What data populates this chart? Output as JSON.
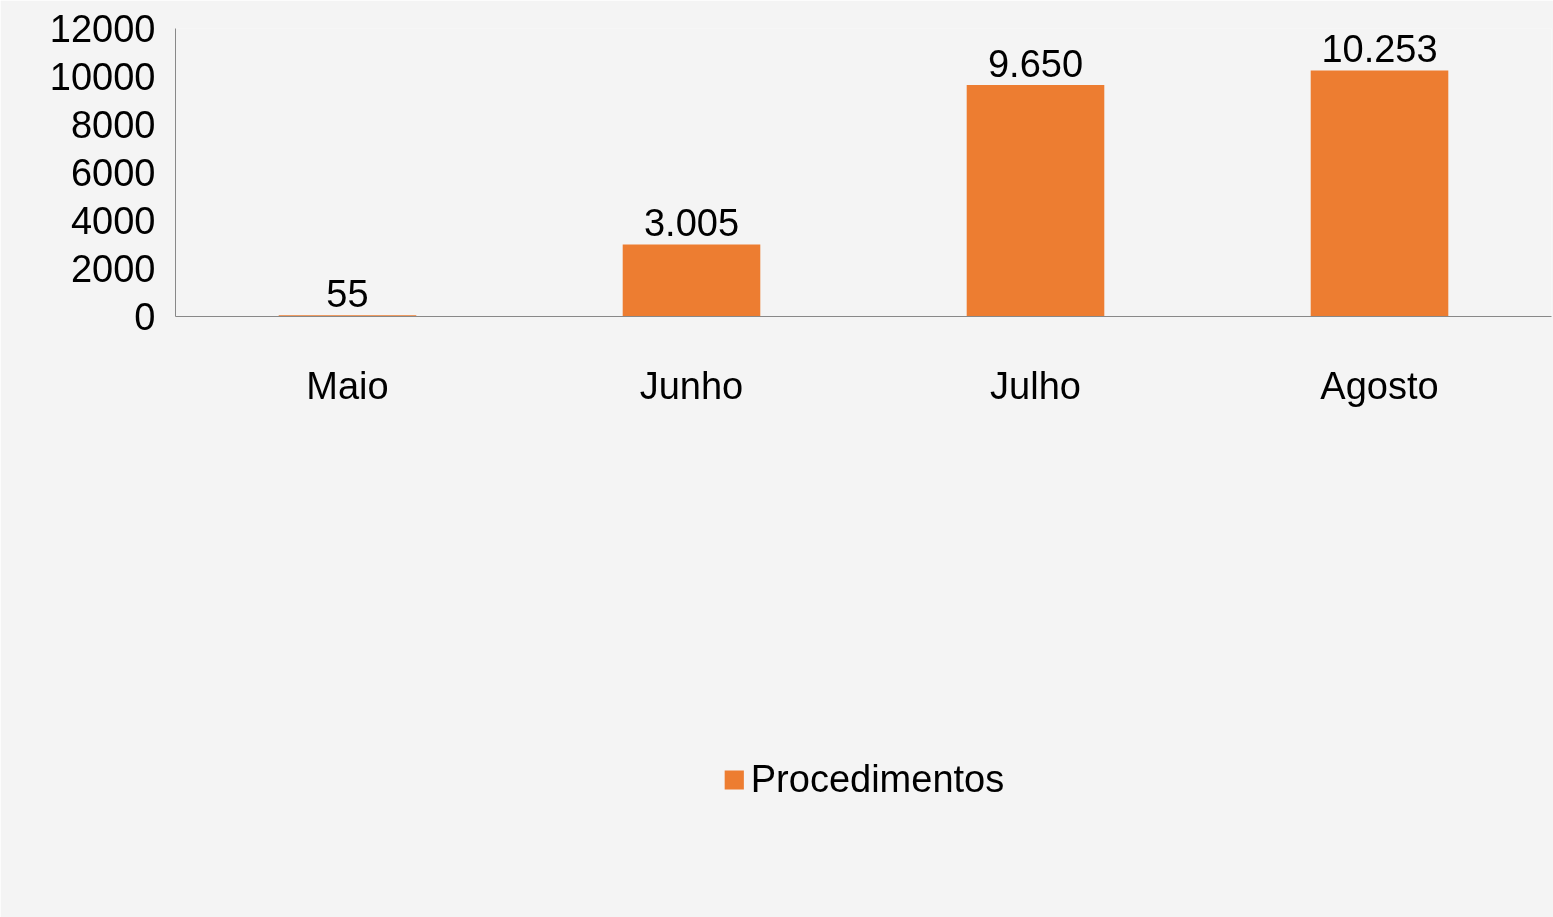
{
  "chart_data": {
    "type": "bar",
    "categories": [
      "Maio",
      "Junho",
      "Julho",
      "Agosto"
    ],
    "series": [
      {
        "name": "Procedimentos",
        "color": "#ed7d31",
        "values": [
          55,
          3005,
          9650,
          10253
        ],
        "value_labels": [
          "55",
          "3.005",
          "9.650",
          "10.253"
        ]
      }
    ],
    "ylim": [
      0,
      12000
    ],
    "yticks": [
      0,
      2000,
      4000,
      6000,
      8000,
      10000,
      12000
    ],
    "grid": false,
    "legend": "bottom"
  }
}
